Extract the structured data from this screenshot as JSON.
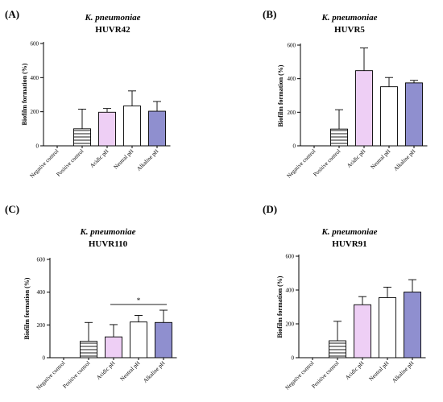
{
  "chart_data": [
    {
      "type": "bar",
      "panel": "(A)",
      "title_species": "K. pneumoniae",
      "title_strain": "HUVR42",
      "ylabel": "Biofilm formation (%)",
      "xlabel": "",
      "ylim": [
        0,
        600
      ],
      "yticks": [
        0,
        200,
        400,
        600
      ],
      "categories": [
        "Negative control",
        "Positive control",
        "Acidic pH",
        "Neutral pH",
        "Alkaline pH"
      ],
      "values": [
        0,
        100,
        197,
        234,
        203
      ],
      "errors": [
        0,
        115,
        22,
        88,
        57
      ],
      "bar_styles": [
        "none",
        "hatched",
        "#eecff5",
        "#ffffff",
        "#8f8fcf"
      ],
      "significance": null
    },
    {
      "type": "bar",
      "panel": "(B)",
      "title_species": "K. pneumoniae",
      "title_strain": "HUVR5",
      "ylabel": "Biofilm formation (%)",
      "xlabel": "",
      "ylim": [
        0,
        600
      ],
      "yticks": [
        0,
        200,
        400,
        600
      ],
      "categories": [
        "Negative control",
        "Positive control",
        "Acidic pH",
        "Neutral pH",
        "Alkaline pH"
      ],
      "values": [
        0,
        100,
        448,
        352,
        375
      ],
      "errors": [
        0,
        115,
        135,
        55,
        15
      ],
      "bar_styles": [
        "none",
        "hatched",
        "#eecff5",
        "#ffffff",
        "#8f8fcf"
      ],
      "significance": null
    },
    {
      "type": "bar",
      "panel": "(C)",
      "title_species": "K. pneumoniae",
      "title_strain": "HUVR110",
      "ylabel": "Biofilm formation (%)",
      "xlabel": "",
      "ylim": [
        0,
        600
      ],
      "yticks": [
        0,
        200,
        400,
        600
      ],
      "categories": [
        "Negative control",
        "Positive control",
        "Acidic pH",
        "Neutral pH",
        "Alkaline pH"
      ],
      "values": [
        0,
        100,
        127,
        218,
        215
      ],
      "errors": [
        0,
        115,
        75,
        40,
        75
      ],
      "bar_styles": [
        "none",
        "hatched",
        "#eecff5",
        "#ffffff",
        "#8f8fcf"
      ],
      "significance": {
        "from": 2,
        "to": 4,
        "y": 325,
        "label": "*"
      }
    },
    {
      "type": "bar",
      "panel": "(D)",
      "title_species": "K. pneumoniae",
      "title_strain": "HUVR91",
      "ylabel": "Biofilm formation (%)",
      "xlabel": "",
      "ylim": [
        0,
        600
      ],
      "yticks": [
        0,
        200,
        400,
        600
      ],
      "categories": [
        "Negative control",
        "Positive control",
        "Acidic pH",
        "Neutral pH",
        "Alkaline pH"
      ],
      "values": [
        0,
        100,
        313,
        355,
        388
      ],
      "errors": [
        0,
        115,
        48,
        62,
        73
      ],
      "bar_styles": [
        "none",
        "hatched",
        "#eecff5",
        "#ffffff",
        "#8f8fcf"
      ],
      "significance": null
    }
  ]
}
